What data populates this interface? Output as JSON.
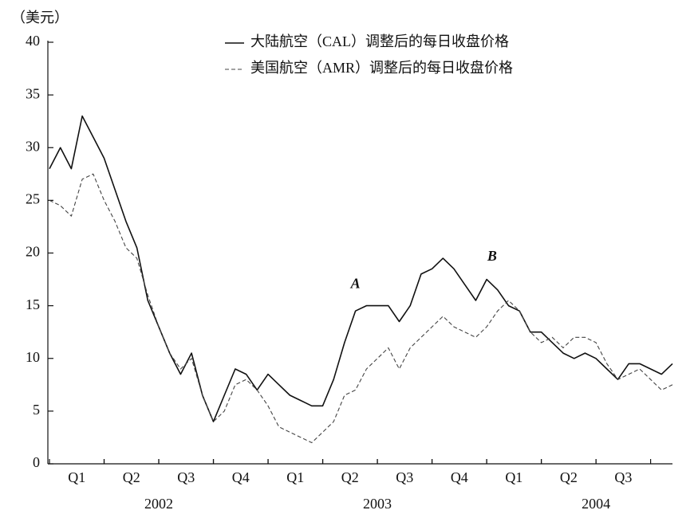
{
  "chart_data": {
    "type": "line",
    "unit_label": "（美元）",
    "x": [
      0,
      0.2,
      0.4,
      0.6,
      0.8,
      1,
      1.2,
      1.4,
      1.6,
      1.8,
      2,
      2.2,
      2.4,
      2.6,
      2.8,
      3,
      3.2,
      3.4,
      3.6,
      3.8,
      4,
      4.2,
      4.4,
      4.6,
      4.8,
      5,
      5.2,
      5.4,
      5.6,
      5.8,
      6,
      6.2,
      6.4,
      6.6,
      6.8,
      7,
      7.2,
      7.4,
      7.6,
      7.8,
      8,
      8.2,
      8.4,
      8.6,
      8.8,
      9,
      9.2,
      9.4,
      9.6,
      9.8,
      10,
      10.2,
      10.4,
      10.6,
      10.8,
      11,
      11.2,
      11.4
    ],
    "series": [
      {
        "name": "大陆航空（CAL）调整后的每日收盘价格",
        "color": "#111111",
        "style": "solid",
        "values": [
          28,
          30,
          28,
          33,
          31,
          29,
          26,
          23,
          20.5,
          15.5,
          13,
          10.5,
          8.5,
          10.5,
          6.5,
          4,
          6.5,
          9,
          8.5,
          7,
          8.5,
          7.5,
          6.5,
          6,
          5.5,
          5.5,
          8,
          11.5,
          14.5,
          15,
          15,
          15,
          13.5,
          15,
          18,
          18.5,
          19.5,
          18.5,
          17,
          15.5,
          17.5,
          16.5,
          15,
          14.5,
          12.5,
          12.5,
          11.5,
          10.5,
          10,
          10.5,
          10,
          9,
          8,
          9.5,
          9.5,
          9,
          8.5,
          9.5
        ]
      },
      {
        "name": "美国航空（AMR）调整后的每日收盘价格",
        "color": "#444444",
        "style": "dashed",
        "values": [
          25,
          24.5,
          23.5,
          27,
          27.5,
          25,
          23,
          20.5,
          19.5,
          16,
          13,
          10.5,
          9,
          10,
          6.5,
          4,
          5,
          7.5,
          8,
          7,
          5.5,
          3.5,
          3,
          2.5,
          2,
          3,
          4,
          6.5,
          7,
          9,
          10,
          11,
          9,
          11,
          12,
          13,
          14,
          13,
          12.5,
          12,
          13,
          14.5,
          15.5,
          14.5,
          12.5,
          11.5,
          12,
          11,
          12,
          12,
          11.5,
          9.5,
          8,
          8.5,
          9,
          8,
          7,
          7.5
        ]
      }
    ],
    "xlim": [
      0,
      11.4
    ],
    "xticks": [
      {
        "value": 0.5,
        "label": "Q1"
      },
      {
        "value": 1.5,
        "label": "Q2"
      },
      {
        "value": 2.5,
        "label": "Q3"
      },
      {
        "value": 3.5,
        "label": "Q4"
      },
      {
        "value": 4.5,
        "label": "Q1"
      },
      {
        "value": 5.5,
        "label": "Q2"
      },
      {
        "value": 6.5,
        "label": "Q3"
      },
      {
        "value": 7.5,
        "label": "Q4"
      },
      {
        "value": 8.5,
        "label": "Q1"
      },
      {
        "value": 9.5,
        "label": "Q2"
      },
      {
        "value": 10.5,
        "label": "Q3"
      }
    ],
    "year_labels": [
      {
        "value": 2,
        "label": "2002"
      },
      {
        "value": 6,
        "label": "2003"
      },
      {
        "value": 10,
        "label": "2004"
      }
    ],
    "ylim": [
      0,
      40
    ],
    "yticks": [
      0,
      5,
      10,
      15,
      20,
      25,
      30,
      35,
      40
    ],
    "grid": false,
    "annotations": [
      {
        "text": "A",
        "x": 5.6,
        "y": 17
      },
      {
        "text": "B",
        "x": 8.1,
        "y": 19.6
      }
    ]
  }
}
